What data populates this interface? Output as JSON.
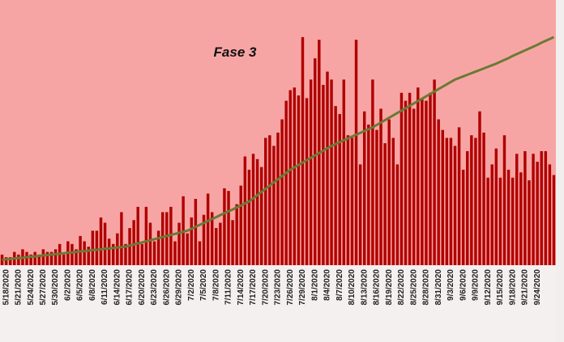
{
  "chart_data": {
    "type": "bar",
    "title": "Fase 3",
    "categories": [
      null,
      "5/18/2020",
      null,
      null,
      "5/21/2020",
      null,
      null,
      "5/24/2020",
      null,
      null,
      "5/27/2020",
      null,
      null,
      "5/30/2020",
      null,
      null,
      "6/2/2020",
      null,
      null,
      "6/5/2020",
      null,
      null,
      "6/8/2020",
      null,
      null,
      "6/11/2020",
      null,
      null,
      "6/14/2020",
      null,
      null,
      "6/17/2020",
      null,
      null,
      "6/20/2020",
      null,
      null,
      "6/23/2020",
      null,
      null,
      "6/26/2020",
      null,
      null,
      "6/29/2020",
      null,
      null,
      "7/2/2020",
      null,
      null,
      "7/5/2020",
      null,
      null,
      "7/8/2020",
      null,
      null,
      "7/11/2020",
      null,
      null,
      "7/14/2020",
      null,
      null,
      "7/17/2020",
      null,
      null,
      "7/20/2020",
      null,
      null,
      "7/23/2020",
      null,
      null,
      "7/26/2020",
      null,
      null,
      "7/29/2020",
      null,
      null,
      "8/1/2020",
      null,
      null,
      "8/4/2020",
      null,
      null,
      "8/7/2020",
      null,
      null,
      "8/10/2020",
      null,
      null,
      "8/13/2020",
      null,
      null,
      "8/16/2020",
      null,
      null,
      "8/19/2020",
      null,
      null,
      "8/22/2020",
      null,
      null,
      "8/25/2020",
      null,
      null,
      "8/28/2020",
      null,
      null,
      "8/31/2020",
      null,
      null,
      "9/3/2020",
      null,
      null,
      "9/6/2020",
      null,
      null,
      "9/9/2020",
      null,
      null,
      "9/12/2020",
      null,
      null,
      "9/15/2020",
      null,
      null,
      "9/18/2020",
      null,
      null,
      "9/21/2020",
      null,
      null,
      "9/24/2020",
      null,
      null,
      null,
      null
    ],
    "series": [
      {
        "type": "bar",
        "color": "#b00000",
        "values": [
          4,
          3,
          3,
          5,
          4,
          6,
          5,
          4,
          5,
          4,
          6,
          5,
          5,
          6,
          8,
          4,
          9,
          8,
          6,
          11,
          9,
          7,
          13,
          13,
          18,
          16,
          10,
          8,
          12,
          20,
          8,
          14,
          17,
          22,
          8,
          22,
          16,
          9,
          13,
          20,
          20,
          22,
          9,
          16,
          26,
          12,
          18,
          25,
          9,
          19,
          27,
          20,
          14,
          16,
          29,
          28,
          17,
          23,
          30,
          41,
          36,
          42,
          40,
          37,
          48,
          49,
          45,
          50,
          55,
          62,
          66,
          67,
          64,
          86,
          63,
          70,
          78,
          85,
          68,
          73,
          70,
          60,
          57,
          70,
          49,
          48,
          85,
          38,
          58,
          53,
          70,
          51,
          59,
          46,
          55,
          48,
          38,
          65,
          62,
          65,
          59,
          67,
          63,
          62,
          65,
          70,
          55,
          51,
          48,
          48,
          45,
          52,
          36,
          43,
          49,
          48,
          58,
          50,
          33,
          38,
          44,
          33,
          49,
          36,
          33,
          42,
          35,
          43,
          32,
          42,
          39,
          43,
          43,
          38,
          34
        ]
      },
      {
        "type": "line",
        "color": "#6b7a35",
        "values": [
          2,
          2.2,
          2.3,
          2.5,
          2.7,
          2.8,
          3,
          3.2,
          3.3,
          3.5,
          3.7,
          3.8,
          4,
          4.2,
          4.3,
          4.5,
          4.7,
          4.8,
          5,
          5.2,
          5.3,
          5.5,
          5.7,
          5.8,
          6,
          6.2,
          6.3,
          6.5,
          6.7,
          6.8,
          7,
          7.4,
          7.8,
          8.2,
          8.6,
          9,
          9.4,
          9.8,
          10.2,
          10.6,
          11,
          11.4,
          11.8,
          12.2,
          12.6,
          13,
          13.7,
          14.5,
          15.2,
          15.9,
          16.7,
          17.4,
          18.1,
          18.9,
          19.6,
          20.3,
          21,
          21.8,
          22.5,
          23.3,
          24,
          25.2,
          26.4,
          27.6,
          28.8,
          30,
          31.2,
          32.4,
          33.6,
          34.8,
          36,
          36.9,
          37.8,
          38.7,
          39.6,
          40.5,
          41.4,
          42.3,
          43.2,
          44.1,
          45,
          45.7,
          46.4,
          47.1,
          47.8,
          48.5,
          49.2,
          49.9,
          50.6,
          51.3,
          52,
          52.9,
          53.8,
          54.7,
          55.6,
          56.5,
          57.4,
          58.3,
          59.2,
          60.1,
          61,
          61.9,
          62.8,
          63.7,
          64.6,
          65.5,
          66.4,
          67.3,
          68.2,
          69.1,
          70,
          70.6,
          71.2,
          71.8,
          72.4,
          73,
          73.6,
          74.2,
          74.8,
          75.4,
          76,
          76.7,
          77.4,
          78.1,
          78.9,
          79.6,
          80.3,
          81,
          81.7,
          82.4,
          83.1,
          83.9,
          84.6,
          85.3,
          86
        ]
      }
    ],
    "ylim": [
      0,
      100
    ]
  }
}
